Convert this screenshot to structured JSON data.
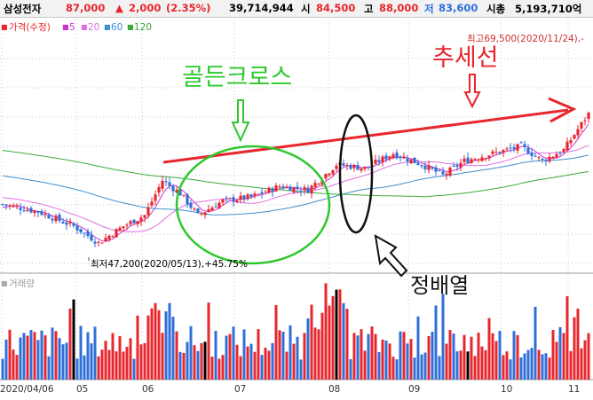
{
  "header": {
    "stock_name": "삼성전자",
    "price": "87,000",
    "change_arrow": "▲",
    "change": "2,000",
    "change_pct": "(2.35%)",
    "volume": "39,714,944",
    "open_label": "시",
    "open": "84,500",
    "high_label": "고",
    "high": "88,000",
    "low_label": "저",
    "low": "83,600",
    "mcap_label": "시총",
    "mcap": "5,193,710억"
  },
  "legend": {
    "price_label": "가격(수정)",
    "ma": [
      {
        "label": "5",
        "color": "#cc33cc"
      },
      {
        "label": "20",
        "color": "#e070e0"
      },
      {
        "label": "60",
        "color": "#3b8fd0"
      },
      {
        "label": "120",
        "color": "#3aaa3a"
      }
    ]
  },
  "volume_label": "거래량",
  "annotations": {
    "high_text": "최고69,500(2020/11/24),-",
    "low_text": "최저47,200(2020/05/13),+45.75%",
    "golden_cross": "골든크로스",
    "trend_line": "추세선",
    "aligned": "정배열"
  },
  "colors": {
    "up": "#e8262d",
    "down": "#2f6fd8",
    "golden_cross_text": "#2ec82e",
    "trend_text": "#e8262d",
    "grid": "#c8c8c8"
  },
  "chart_data": {
    "type": "candlestick",
    "x_ticks": [
      "2020/04/06",
      "05",
      "06",
      "07",
      "08",
      "09",
      "10",
      "11"
    ],
    "price_high": 69500,
    "price_high_date": "2020/11/24",
    "price_low": 47200,
    "price_low_date": "2020/05/13",
    "grid": true,
    "moving_averages": [
      "5",
      "20",
      "60",
      "120"
    ]
  }
}
